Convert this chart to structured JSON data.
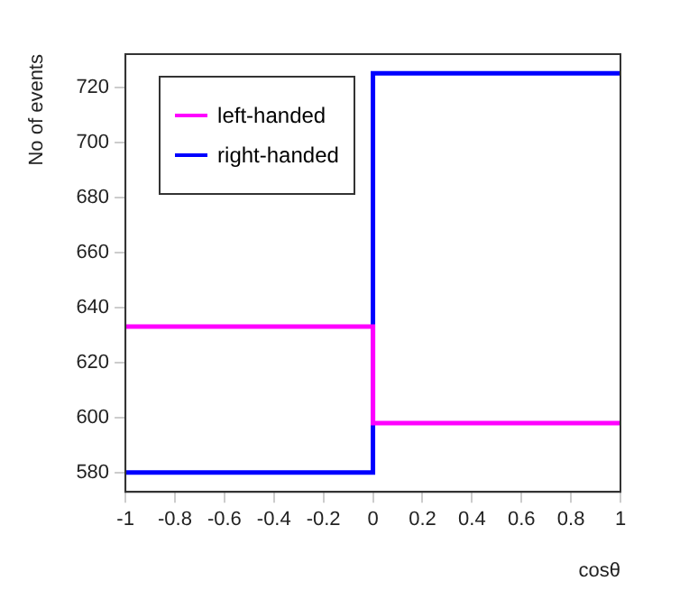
{
  "chart_data": {
    "type": "histogram",
    "xlabel": "cosθ",
    "ylabel": "No of events",
    "bins": [
      -1,
      0,
      1
    ],
    "series": [
      {
        "name": "left-handed",
        "color": "#ff00ff",
        "values": [
          633,
          598
        ]
      },
      {
        "name": "right-handed",
        "color": "#0000ff",
        "values": [
          580,
          725
        ]
      }
    ],
    "xlim": [
      -1,
      1
    ],
    "xticks": [
      -1,
      -0.8,
      -0.6,
      -0.4,
      -0.2,
      0,
      0.2,
      0.4,
      0.6,
      0.8,
      1
    ],
    "ylim": [
      573,
      732
    ],
    "yticks": [
      580,
      600,
      620,
      640,
      660,
      680,
      700,
      720
    ],
    "grid": false,
    "legend": "top left"
  }
}
